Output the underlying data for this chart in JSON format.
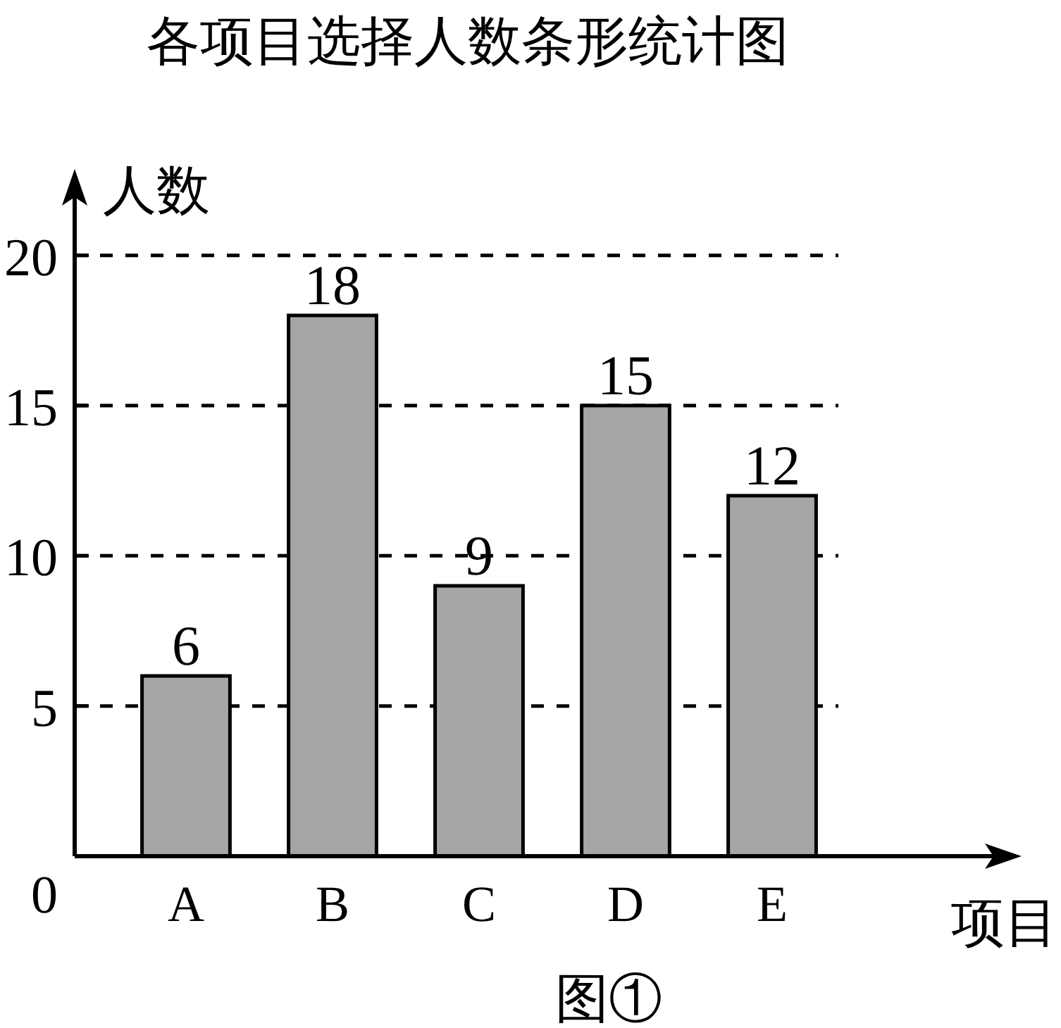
{
  "chart_data": {
    "type": "bar",
    "title": "各项目选择人数条形统计图",
    "xlabel": "项目",
    "ylabel": "人数",
    "categories": [
      "A",
      "B",
      "C",
      "D",
      "E"
    ],
    "values": [
      6,
      18,
      9,
      15,
      12
    ],
    "color": "#a6a6a6",
    "ylim": [
      0,
      22.5
    ],
    "yticks": [
      0,
      5,
      10,
      15,
      20
    ],
    "grid": "y",
    "data_labels": true,
    "annotations": [
      "图①"
    ]
  }
}
